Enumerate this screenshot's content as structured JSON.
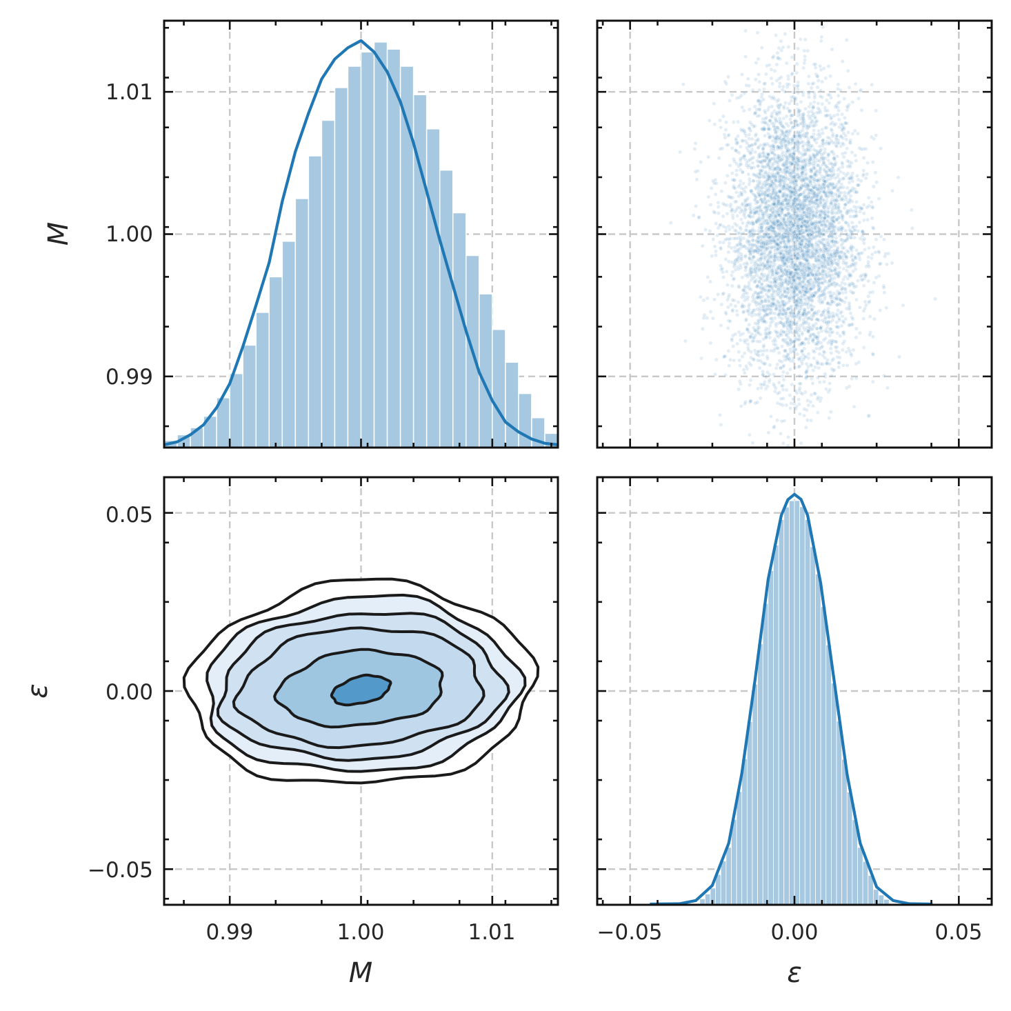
{
  "chart_data": [
    {
      "panel": "top-left",
      "type": "bar",
      "subtype": "histogram-with-kde",
      "xlim": [
        0.985,
        1.015
      ],
      "ylim": [
        0.985,
        1.015
      ],
      "ylabel": "M",
      "yticks": [
        "0.99",
        "1.00",
        "1.01"
      ],
      "grid": true,
      "hist_color": "#a6c8e0",
      "kde_color": "#1f77b4",
      "bin_edges_start": 0.985,
      "bin_width": 0.001,
      "bar_tops_in_y_units": [
        0.9855,
        0.9859,
        0.9864,
        0.9872,
        0.9885,
        0.9902,
        0.9922,
        0.9945,
        0.997,
        0.9995,
        1.0025,
        1.0055,
        1.008,
        1.0103,
        1.0118,
        1.0128,
        1.0135,
        1.013,
        1.0118,
        1.0098,
        1.0074,
        1.0045,
        1.0015,
        0.9985,
        0.9958,
        0.9933,
        0.991,
        0.9888,
        0.9871,
        0.986
      ],
      "kde_x": [
        0.985,
        0.986,
        0.987,
        0.988,
        0.989,
        0.99,
        0.991,
        0.992,
        0.993,
        0.994,
        0.995,
        0.996,
        0.997,
        0.998,
        0.999,
        1.0,
        1.0005,
        1.001,
        1.002,
        1.003,
        1.004,
        1.005,
        1.006,
        1.007,
        1.008,
        1.009,
        1.01,
        1.011,
        1.012,
        1.013,
        1.014,
        1.015
      ],
      "kde_y": [
        0.9852,
        0.9854,
        0.9859,
        0.9866,
        0.9878,
        0.9895,
        0.9921,
        0.995,
        0.998,
        1.0023,
        1.0058,
        1.0085,
        1.0109,
        1.0123,
        1.0131,
        1.0136,
        1.0132,
        1.0128,
        1.0114,
        1.0093,
        1.0064,
        1.003,
        0.9996,
        0.9964,
        0.9932,
        0.9903,
        0.9883,
        0.9868,
        0.9861,
        0.9856,
        0.9853,
        0.9852
      ]
    },
    {
      "panel": "top-right",
      "type": "scatter",
      "xlim": [
        -0.06,
        0.06
      ],
      "ylim": [
        0.985,
        1.015
      ],
      "grid": true,
      "point_color": "#1f77b4",
      "x_center": 0.0,
      "x_spread_std": 0.01,
      "y_center": 1.0,
      "y_spread_std": 0.005
    },
    {
      "panel": "bottom-left",
      "type": "contour",
      "subtype": "kde-contour",
      "xlim": [
        0.985,
        1.015
      ],
      "ylim": [
        -0.06,
        0.06
      ],
      "xlabel": "M",
      "ylabel": "ε",
      "xticks": [
        "0.99",
        "1.00",
        "1.01"
      ],
      "yticks": [
        "−0.05",
        "0.00",
        "0.05"
      ],
      "grid": true,
      "center": [
        1.0,
        0.0
      ],
      "levels": [
        {
          "half_width_x": 0.0131,
          "half_height_y": 0.0285,
          "fill": "#ffffff"
        },
        {
          "half_width_x": 0.0119,
          "half_height_y": 0.0245,
          "fill": "#e3eef8"
        },
        {
          "half_width_x": 0.0108,
          "half_height_y": 0.0205,
          "fill": "#d0e1f2"
        },
        {
          "half_width_x": 0.0093,
          "half_height_y": 0.0165,
          "fill": "#c2d9ee"
        },
        {
          "half_width_x": 0.0063,
          "half_height_y": 0.0105,
          "fill": "#9ec6e1"
        },
        {
          "half_width_x": 0.0022,
          "half_height_y": 0.0038,
          "fill": "#5399c9"
        }
      ],
      "line_color": "#1a1a1a"
    },
    {
      "panel": "bottom-right",
      "type": "bar",
      "subtype": "histogram-with-kde",
      "xlim": [
        -0.06,
        0.06
      ],
      "xlabel": "ε",
      "xticks": [
        "−0.05",
        "0.00",
        "0.05"
      ],
      "grid": true,
      "hist_color": "#a6c8e0",
      "kde_color": "#1f77b4",
      "kde_x": [
        -0.044,
        -0.035,
        -0.03,
        -0.025,
        -0.02,
        -0.016,
        -0.012,
        -0.008,
        -0.004,
        -0.002,
        0.0,
        0.002,
        0.004,
        0.008,
        0.012,
        0.016,
        0.02,
        0.025,
        0.03,
        0.035,
        0.042
      ],
      "kde_y_in_bottom_left_y_units": [
        -0.0598,
        -0.0597,
        -0.0588,
        -0.0546,
        -0.0427,
        -0.0231,
        0.0031,
        0.0314,
        0.0493,
        0.0537,
        0.0552,
        0.0538,
        0.0493,
        0.0302,
        0.0034,
        -0.0233,
        -0.0427,
        -0.055,
        -0.0588,
        -0.0597,
        -0.0598
      ]
    }
  ]
}
